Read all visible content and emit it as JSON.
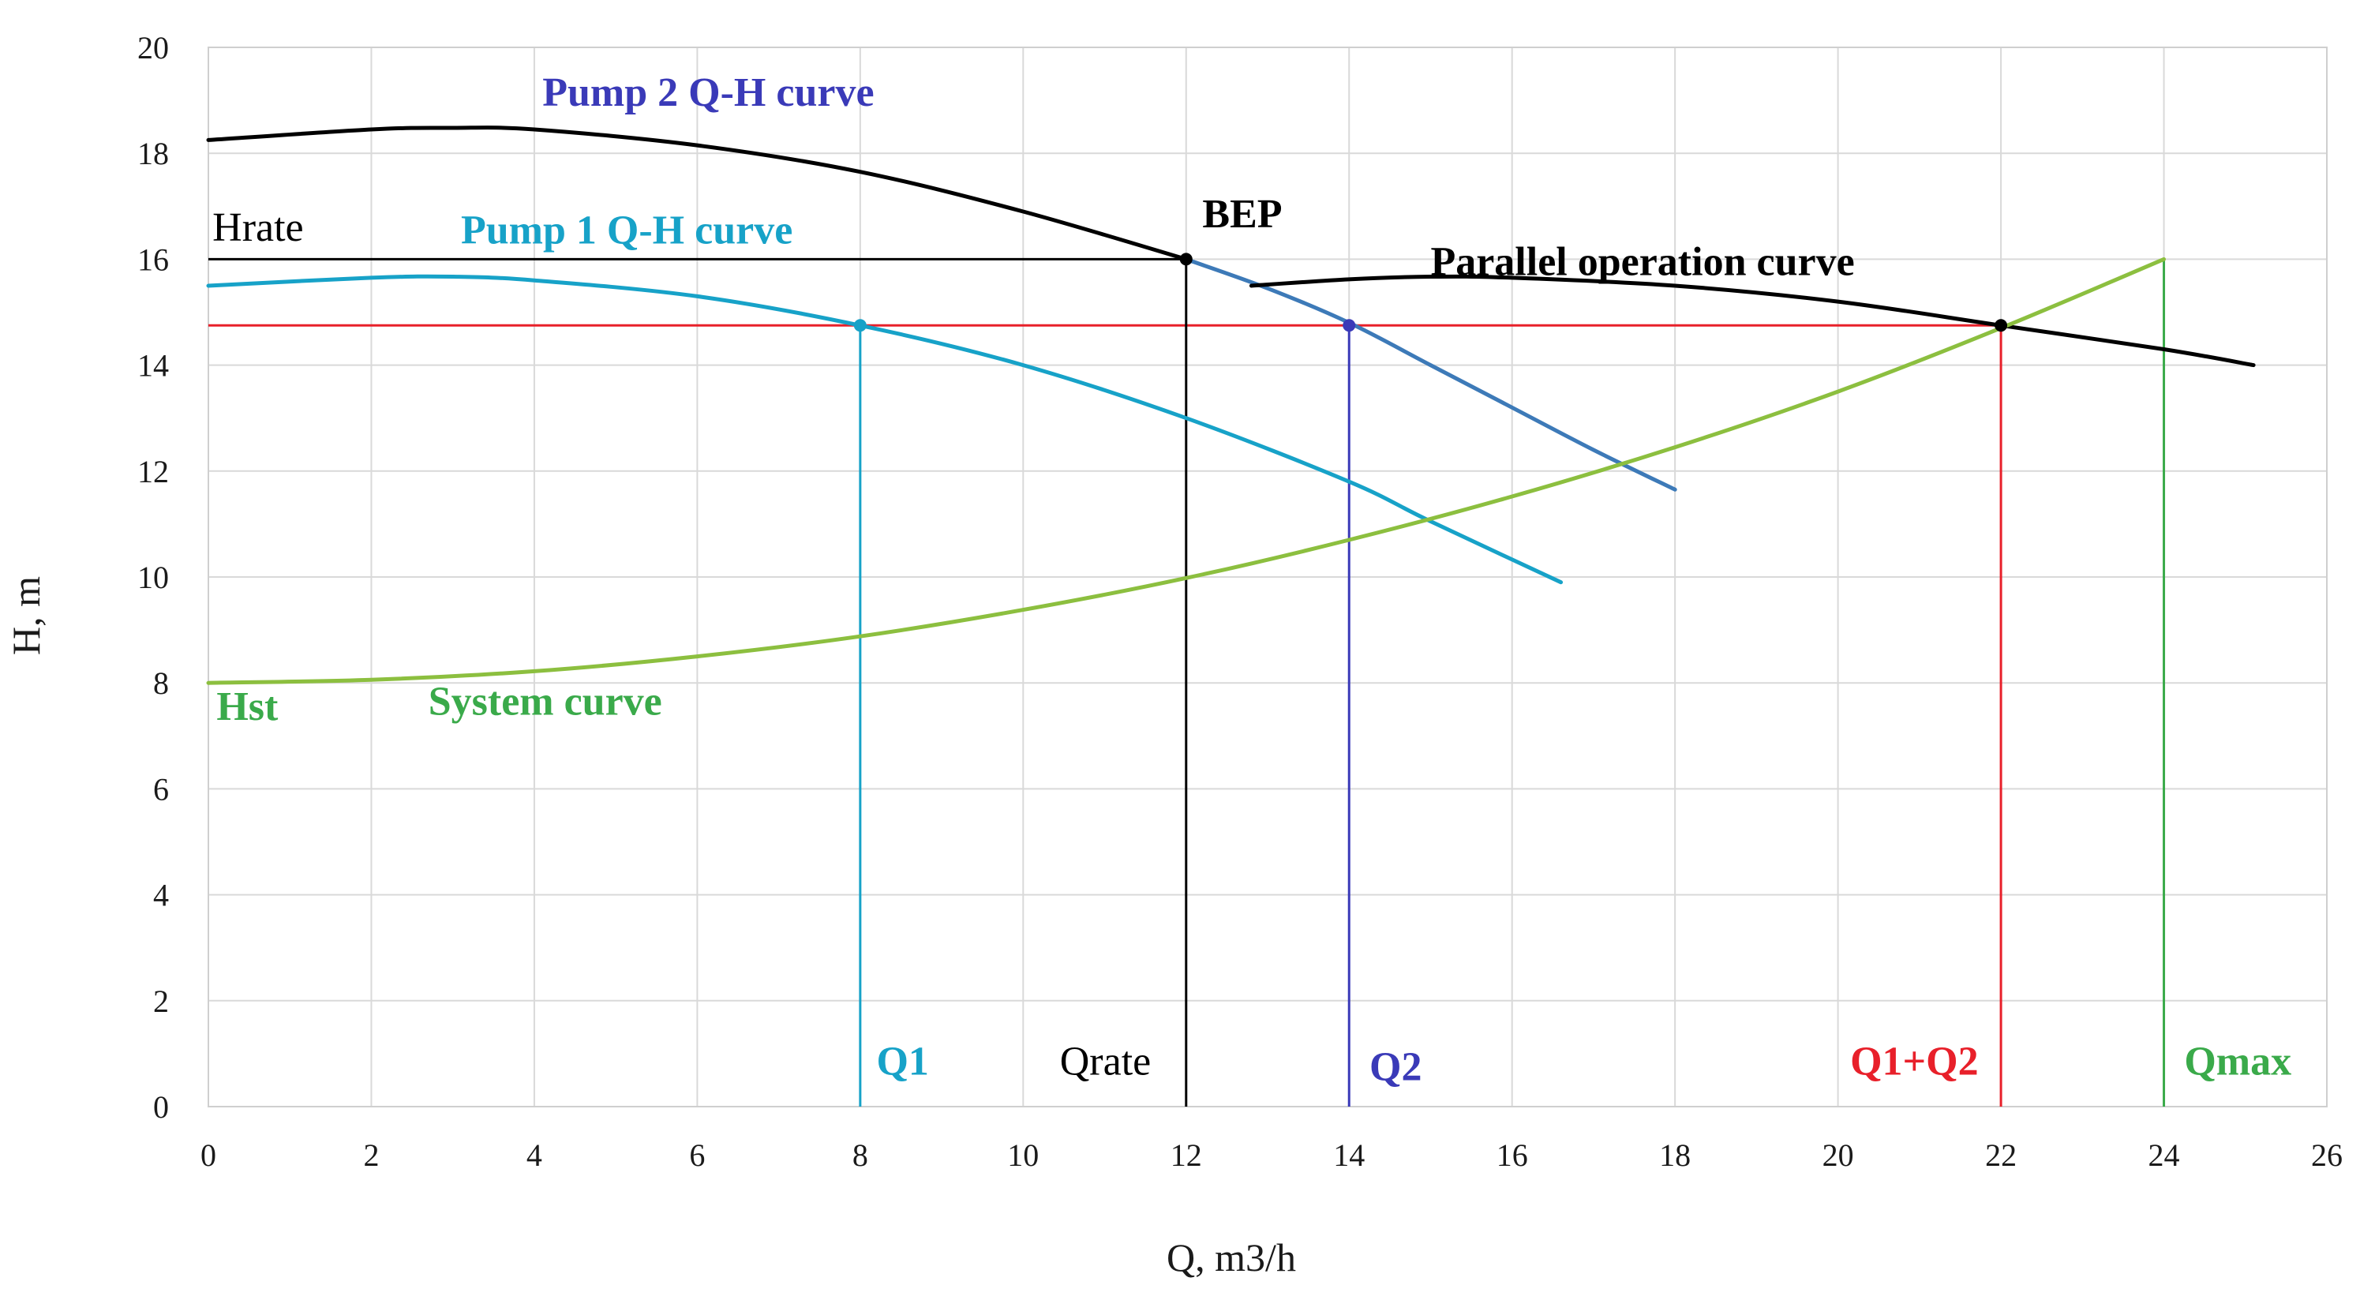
{
  "chart_data": {
    "type": "line",
    "xlabel": "Q, m3/h",
    "ylabel": "H, m",
    "xlim": [
      0,
      26
    ],
    "ylim": [
      0,
      20
    ],
    "xticks": [
      0,
      2,
      4,
      6,
      8,
      10,
      12,
      14,
      16,
      18,
      20,
      22,
      24,
      26
    ],
    "yticks": [
      0,
      2,
      4,
      6,
      8,
      10,
      12,
      14,
      16,
      18,
      20
    ],
    "grid": true,
    "series": [
      {
        "name": "Pump 2 Q-H curve",
        "color": "#000000",
        "x": [
          0,
          2,
          3,
          4,
          6,
          8,
          10,
          12
        ],
        "y": [
          18.25,
          18.45,
          18.48,
          18.45,
          18.15,
          17.65,
          16.9,
          16.0
        ]
      },
      {
        "name": "Pump 2 Q-H curve (continued)",
        "color": "#3d7ab8",
        "x": [
          12,
          13,
          14,
          15,
          16,
          17,
          18
        ],
        "y": [
          16.0,
          15.45,
          14.8,
          14.0,
          13.2,
          12.4,
          11.65
        ]
      },
      {
        "name": "Pump 1 Q-H curve",
        "color": "#17a2c8",
        "x": [
          0,
          2,
          3,
          4,
          6,
          8,
          10,
          12,
          14,
          15,
          16.6
        ],
        "y": [
          15.5,
          15.65,
          15.67,
          15.6,
          15.3,
          14.75,
          14.0,
          13.0,
          11.8,
          11.05,
          9.9
        ]
      },
      {
        "name": "Parallel operation curve",
        "color": "#000000",
        "x": [
          12.8,
          14,
          15,
          16,
          18,
          20,
          22,
          24,
          25.1
        ],
        "y": [
          15.5,
          15.62,
          15.67,
          15.65,
          15.5,
          15.2,
          14.75,
          14.3,
          14.0
        ]
      },
      {
        "name": "System curve",
        "color": "#8cbf3f",
        "x": [
          0,
          2,
          4,
          6,
          8,
          10,
          12,
          14,
          16,
          18,
          20,
          22,
          24
        ],
        "y": [
          8.0,
          8.06,
          8.22,
          8.5,
          8.88,
          9.38,
          9.98,
          10.7,
          11.52,
          12.45,
          13.5,
          14.7,
          16.0
        ]
      }
    ],
    "reference_lines": [
      {
        "name": "Hrate",
        "orientation": "horizontal",
        "y": 16,
        "x_from": 0,
        "x_to": 12,
        "color": "#000000"
      },
      {
        "name": "operating head",
        "orientation": "horizontal",
        "y": 14.75,
        "x_from": 0,
        "x_to": 22,
        "color": "#e8202a"
      },
      {
        "name": "Q1",
        "orientation": "vertical",
        "x": 8,
        "y_from": 0,
        "y_to": 14.75,
        "color": "#17a2c8"
      },
      {
        "name": "Qrate",
        "orientation": "vertical",
        "x": 12,
        "y_from": 0,
        "y_to": 16,
        "color": "#000000"
      },
      {
        "name": "Q2",
        "orientation": "vertical",
        "x": 14,
        "y_from": 0,
        "y_to": 14.75,
        "color": "#3a3ab8"
      },
      {
        "name": "Q1+Q2",
        "orientation": "vertical",
        "x": 22,
        "y_from": 0,
        "y_to": 14.75,
        "color": "#e8202a"
      },
      {
        "name": "Qmax",
        "orientation": "vertical",
        "x": 24,
        "y_from": 0,
        "y_to": 16,
        "color": "#3aaa4a"
      }
    ],
    "points": [
      {
        "name": "BEP",
        "x": 12,
        "y": 16,
        "color": "#000000"
      },
      {
        "name": "Q1 point",
        "x": 8,
        "y": 14.75,
        "color": "#17a2c8"
      },
      {
        "name": "Q2 point",
        "x": 14,
        "y": 14.75,
        "color": "#3a3ab8"
      },
      {
        "name": "Q1+Q2 point",
        "x": 22,
        "y": 14.75,
        "color": "#000000"
      }
    ],
    "annotations": [
      {
        "text": "Pump 2 Q-H curve",
        "x": 4.1,
        "y": 18.9,
        "color": "#3a3ab8",
        "bold": true
      },
      {
        "text": "Hrate",
        "x": 0.05,
        "y": 16.35,
        "color": "#000000",
        "bold": false
      },
      {
        "text": "Pump 1 Q-H curve",
        "x": 3.1,
        "y": 16.3,
        "color": "#17a2c8",
        "bold": true
      },
      {
        "text": "BEP",
        "x": 12.2,
        "y": 16.6,
        "color": "#000000",
        "bold": true
      },
      {
        "text": "Parallel operation curve",
        "x": 15.0,
        "y": 15.7,
        "color": "#000000",
        "bold": true
      },
      {
        "text": "Hst",
        "x": 0.1,
        "y": 7.3,
        "color": "#3aaa4a",
        "bold": true
      },
      {
        "text": "System curve",
        "x": 2.7,
        "y": 7.4,
        "color": "#3aaa4a",
        "bold": true
      },
      {
        "text": "Q1",
        "x": 8.2,
        "y": 0.6,
        "color": "#17a2c8",
        "bold": true
      },
      {
        "text": "Qrate",
        "x": 10.45,
        "y": 0.6,
        "color": "#000000",
        "bold": false
      },
      {
        "text": "Q2",
        "x": 14.25,
        "y": 0.5,
        "color": "#3a3ab8",
        "bold": true
      },
      {
        "text": "Q1+Q2",
        "x": 20.15,
        "y": 0.6,
        "color": "#e8202a",
        "bold": true
      },
      {
        "text": "Qmax",
        "x": 24.25,
        "y": 0.6,
        "color": "#3aaa4a",
        "bold": true
      }
    ]
  }
}
